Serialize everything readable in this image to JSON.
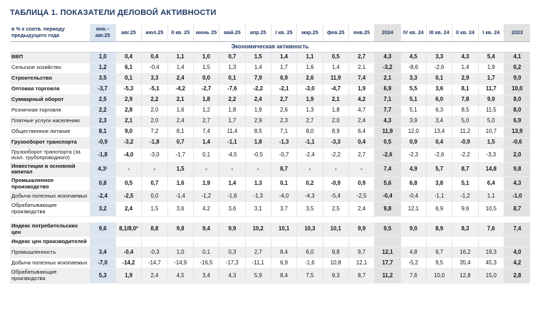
{
  "title": "ТАБЛИЦА 1. ПОКАЗАТЕЛИ ДЕЛОВОЙ АКТИВНОСТИ",
  "table": {
    "corner_label": "в % к соотв. периоду предыдущего года",
    "section_header": "Экономическая активность",
    "columns": [
      "янв.– авг.25",
      "авг.25",
      "июл.25",
      "II кв. 25",
      "июнь 25",
      "май.25",
      "апр.25",
      "I кв. 25",
      "мар.25",
      "фев.25",
      "янв.25",
      "2024",
      "IV кв. 24",
      "III кв. 24",
      "II кв. 24",
      "I кв. 24",
      "2023"
    ],
    "highlight": {
      "blue_column": 0,
      "gray_columns": [
        11,
        16
      ],
      "bold_columns": [
        0,
        1,
        11,
        16
      ]
    },
    "colors": {
      "accent": "#1F3864",
      "blue_col_bg": "#DBE5F1",
      "gray_col_bg": "#E2E2E2",
      "stripe_bg": "#EFEFEF"
    },
    "sections": [
      {
        "rows": [
          {
            "label": "ВВП",
            "bold": true,
            "values": [
              "1,0",
              "0,4",
              "0,4",
              "1,1",
              "1,0",
              "0,7",
              "1,5",
              "1,4",
              "1,1",
              "0,5",
              "2,7",
              "4,3",
              "4,5",
              "3,3",
              "4,3",
              "5,4",
              "4,1"
            ]
          },
          {
            "label": "Сельское хозяйство",
            "bold": false,
            "values": [
              "1,2",
              "6,1",
              "-0,4",
              "1,4",
              "1,5",
              "1,3",
              "1,4",
              "1,7",
              "1,6",
              "1,4",
              "2,1",
              "-3,2",
              "-8,6",
              "-2,6",
              "1,4",
              "1,9",
              "0,2"
            ]
          },
          {
            "label": "Строительство",
            "bold": true,
            "values": [
              "3,5",
              "0,1",
              "3,3",
              "2,4",
              "0,0",
              "0,1",
              "7,9",
              "6,9",
              "2,6",
              "11,9",
              "7,4",
              "2,1",
              "3,3",
              "0,1",
              "2,9",
              "1,7",
              "9,0"
            ]
          },
          {
            "label": "Оптовая торговля",
            "bold": true,
            "values": [
              "-3,7",
              "-5,3",
              "-5,1",
              "-4,2",
              "-2,7",
              "-7,6",
              "-2,2",
              "-2,1",
              "-3,0",
              "-4,7",
              "1,9",
              "6,9",
              "5,5",
              "3,6",
              "8,1",
              "11,7",
              "10,0"
            ]
          },
          {
            "label": "Суммарный оборот",
            "bold": true,
            "values": [
              "2,5",
              "2,9",
              "2,2",
              "2,1",
              "1,8",
              "2,2",
              "2,4",
              "2,7",
              "1,9",
              "2,1",
              "4,2",
              "7,1",
              "5,1",
              "6,0",
              "7,8",
              "9,9",
              "8,0"
            ]
          },
          {
            "label": "Розничная торговля",
            "bold": false,
            "values": [
              "2,2",
              "2,8",
              "2,0",
              "1,6",
              "1,2",
              "1,8",
              "1,9",
              "2,6",
              "1,3",
              "1,8",
              "4,7",
              "7,7",
              "5,1",
              "6,3",
              "8,5",
              "11,5",
              "8,0"
            ]
          },
          {
            "label": "Платные услуги населению",
            "bold": false,
            "values": [
              "2,3",
              "2,1",
              "2,0",
              "2,4",
              "2,7",
              "1,7",
              "2,9",
              "2,3",
              "2,7",
              "2,0",
              "2,4",
              "4,3",
              "3,9",
              "3,4",
              "5,0",
              "5,0",
              "6,9"
            ]
          },
          {
            "label": "Общественное питание",
            "bold": false,
            "values": [
              "8,1",
              "9,0",
              "7,2",
              "8,1",
              "7,4",
              "11,4",
              "8,5",
              "7,1",
              "8,0",
              "8,9",
              "6,4",
              "11,9",
              "12,0",
              "13,4",
              "11,2",
              "10,7",
              "13,9"
            ]
          },
          {
            "label": "Грузооборот транспорта",
            "bold": true,
            "values": [
              "-0,9",
              "-3,2",
              "-1,8",
              "0,7",
              "1,4",
              "-1,1",
              "1,8",
              "-1,3",
              "-1,1",
              "-3,3",
              "0,4",
              "0,5",
              "0,9",
              "0,4",
              "-0,9",
              "1,5",
              "-0,6"
            ]
          },
          {
            "label": "Грузооборот транспорта (за искл. трубопроводного)",
            "bold": false,
            "values": [
              "-1,8",
              "-4,0",
              "-3,0",
              "-1,7",
              "0,1",
              "-4,5",
              "-0,5",
              "-0,7",
              "-2,4",
              "-2,2",
              "2,7",
              "-2,6",
              "-2,3",
              "-2,6",
              "-2,2",
              "-3,3",
              "2,0"
            ]
          },
          {
            "label": "Инвестиции в основной капитал",
            "bold": true,
            "values": [
              "4,3¹",
              "-",
              "-",
              "1,5",
              "-",
              "-",
              "-",
              "8,7",
              "-",
              "-",
              "-",
              "7,4",
              "4,9",
              "5,7",
              "8,7",
              "14,8",
              "9,8"
            ]
          },
          {
            "label": "Промышленное производство",
            "bold": true,
            "values": [
              "0,8",
              "0,5",
              "0,7",
              "1,6",
              "1,9",
              "1,4",
              "1,3",
              "0,1",
              "0,2",
              "-0,9",
              "0,9",
              "5,6",
              "6,8",
              "3,8",
              "5,1",
              "6,4",
              "4,3"
            ]
          },
          {
            "label": "Добыча полезных ископаемых",
            "bold": false,
            "values": [
              "-2,4",
              "-2,5",
              "0,0",
              "-1,4",
              "-1,2",
              "-1,6",
              "-1,3",
              "-4,0",
              "-4,3",
              "-5,4",
              "-2,5",
              "-0,4",
              "-0,4",
              "-1,1",
              "-1,2",
              "1,1",
              "-1,0"
            ]
          },
          {
            "label": "Обрабатывающие производства",
            "bold": false,
            "values": [
              "3,2",
              "2,4",
              "1,5",
              "3,6",
              "4,2",
              "3,6",
              "3,1",
              "3,7",
              "3,5",
              "2,5",
              "2,4",
              "9,8",
              "12,1",
              "6,9",
              "9,6",
              "10,5",
              "8,7"
            ]
          }
        ]
      },
      {
        "rows": [
          {
            "label": "Индекс потребительских цен",
            "bold": true,
            "values": [
              "9,6",
              "8,1/8,0²",
              "8,8",
              "9,8",
              "9,4",
              "9,9",
              "10,2",
              "10,1",
              "10,3",
              "10,1",
              "9,9",
              "9,5",
              "9,0",
              "8,9",
              "8,3",
              "7,6",
              "7,4"
            ]
          },
          {
            "label": "Индекс цен производителей",
            "bold": true,
            "values": [
              "",
              "",
              "",
              "",
              "",
              "",
              "",
              "",
              "",
              "",
              "",
              "",
              "",
              "",
              "",
              "",
              ""
            ]
          },
          {
            "label": "Промышленность",
            "bold": false,
            "values": [
              "3,4",
              "-0,4",
              "-0,3",
              "1,0",
              "0,1",
              "0,3",
              "2,7",
              "8,4",
              "6,0",
              "9,8",
              "9,7",
              "12,1",
              "4,8",
              "9,7",
              "16,2",
              "19,3",
              "4,0"
            ]
          },
          {
            "label": "Добыча полезных ископаемых",
            "bold": false,
            "values": [
              "-7,0",
              "-14,2",
              "-14,7",
              "-14,9",
              "-16,5",
              "-17,3",
              "-11,1",
              "6,9",
              "-1,6",
              "10,8",
              "12,1",
              "17,7",
              "-5,2",
              "9,5",
              "35,4",
              "45,3",
              "4,2"
            ]
          },
          {
            "label": "Обрабатывающие производства",
            "bold": false,
            "values": [
              "5,3",
              "1,9",
              "2,4",
              "4,5",
              "3,4",
              "4,3",
              "5,9",
              "8,4",
              "7,5",
              "9,3",
              "8,7",
              "11,2",
              "7,6",
              "10,0",
              "12,8",
              "15,0",
              "2,8"
            ]
          }
        ]
      }
    ]
  }
}
